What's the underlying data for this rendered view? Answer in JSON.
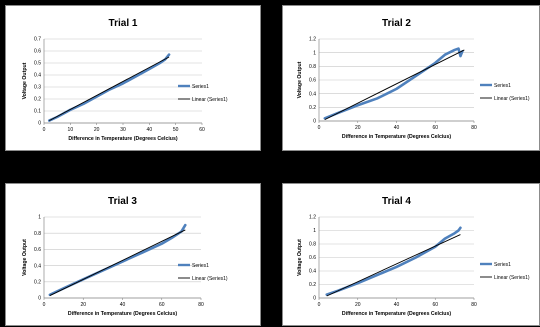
{
  "colors": {
    "series": "#4f81bd",
    "trend": "#000000",
    "grid": "#c8c8c8"
  },
  "legend_labels": {
    "series": "Series1",
    "trend": "Linear (Series1)"
  },
  "chart_data": [
    {
      "type": "line",
      "title": "Trial 1",
      "xlabel": "Difference in Temperature (Degrees Celcius)",
      "ylabel": "Voltage Output",
      "xlim": [
        0,
        60
      ],
      "ylim": [
        0,
        0.7
      ],
      "xticks": [
        0,
        10,
        20,
        30,
        40,
        50,
        60
      ],
      "yticks": [
        0,
        0.1,
        0.2,
        0.3,
        0.4,
        0.5,
        0.6,
        0.7
      ],
      "grid": true,
      "legend_position": "right",
      "series": [
        {
          "name": "Series1",
          "x": [
            2,
            5,
            10,
            15,
            20,
            25,
            30,
            35,
            40,
            44,
            46,
            47.5
          ],
          "y": [
            0.02,
            0.05,
            0.11,
            0.16,
            0.22,
            0.28,
            0.33,
            0.39,
            0.45,
            0.5,
            0.53,
            0.57
          ]
        },
        {
          "name": "Linear (Series1)",
          "x": [
            2,
            47.5
          ],
          "y": [
            0.02,
            0.55
          ]
        }
      ]
    },
    {
      "type": "line",
      "title": "Trial 2",
      "xlabel": "Difference in Temperature (Degrees Celcius)",
      "ylabel": "Voltage Output",
      "xlim": [
        0,
        80
      ],
      "ylim": [
        0,
        1.2
      ],
      "xticks": [
        0,
        20,
        40,
        60,
        80
      ],
      "yticks": [
        0,
        0.2,
        0.4,
        0.6,
        0.8,
        1,
        1.2
      ],
      "grid": true,
      "legend_position": "right",
      "series": [
        {
          "name": "Series1",
          "x": [
            3,
            10,
            20,
            30,
            35,
            40,
            50,
            60,
            65,
            70,
            72,
            73,
            74
          ],
          "y": [
            0.04,
            0.12,
            0.23,
            0.33,
            0.4,
            0.47,
            0.66,
            0.85,
            0.97,
            1.04,
            1.06,
            0.95,
            1.02
          ]
        },
        {
          "name": "Linear (Series1)",
          "x": [
            3,
            75
          ],
          "y": [
            0.02,
            1.04
          ]
        }
      ]
    },
    {
      "type": "line",
      "title": "Trial 3",
      "xlabel": "Difference in Temperature (Degrees Celcius)",
      "ylabel": "Voltage Output",
      "xlim": [
        0,
        80
      ],
      "ylim": [
        0,
        1
      ],
      "xticks": [
        0,
        20,
        40,
        60,
        80
      ],
      "yticks": [
        0,
        0.2,
        0.4,
        0.6,
        0.8,
        1
      ],
      "grid": true,
      "legend_position": "right",
      "series": [
        {
          "name": "Series1",
          "x": [
            3,
            10,
            20,
            30,
            40,
            50,
            60,
            65,
            70,
            72
          ],
          "y": [
            0.04,
            0.12,
            0.23,
            0.34,
            0.45,
            0.56,
            0.67,
            0.74,
            0.82,
            0.9
          ]
        },
        {
          "name": "Linear (Series1)",
          "x": [
            3,
            72
          ],
          "y": [
            0.03,
            0.84
          ]
        }
      ]
    },
    {
      "type": "line",
      "title": "Trial 4",
      "xlabel": "Difference in Temperature (Degrees Celcius)",
      "ylabel": "Voltage Output",
      "xlim": [
        0,
        80
      ],
      "ylim": [
        0,
        1.2
      ],
      "xticks": [
        0,
        20,
        40,
        60,
        80
      ],
      "yticks": [
        0,
        0.2,
        0.4,
        0.6,
        0.8,
        1,
        1.2
      ],
      "grid": true,
      "legend_position": "right",
      "series": [
        {
          "name": "Series1",
          "x": [
            4,
            10,
            20,
            30,
            40,
            50,
            60,
            65,
            70,
            72,
            73
          ],
          "y": [
            0.05,
            0.11,
            0.22,
            0.34,
            0.46,
            0.6,
            0.76,
            0.88,
            0.96,
            1.0,
            1.04
          ]
        },
        {
          "name": "Linear (Series1)",
          "x": [
            4,
            73
          ],
          "y": [
            0.03,
            0.94
          ]
        }
      ]
    }
  ]
}
